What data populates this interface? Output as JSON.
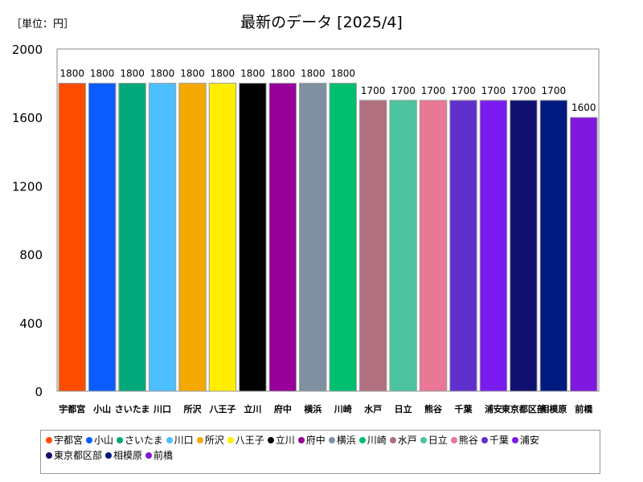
{
  "chart_data": {
    "type": "bar",
    "title": "最新のデータ [2025/4]",
    "unit_label": "［単位：円］",
    "xlabel": "",
    "ylabel": "",
    "ylim": [
      0,
      2000
    ],
    "yticks": [
      "0",
      "400",
      "800",
      "1200",
      "1600",
      "2000"
    ],
    "grid": false,
    "legend_position": "bottom",
    "categories": [
      "宇都宮",
      "小山",
      "さいたま",
      "川口",
      "所沢",
      "八王子",
      "立川",
      "府中",
      "横浜",
      "川崎",
      "水戸",
      "日立",
      "熊谷",
      "千葉",
      "浦安",
      "東京都区部",
      "相模原",
      "前橋"
    ],
    "tick_labels": [
      "宇都宮",
      "小山",
      "さいたま",
      "川口",
      "所沢",
      "八王子",
      "立川",
      "府中",
      "横浜",
      "川崎",
      "水戸",
      "日立",
      "熊谷",
      "千葉",
      "浦安",
      "東京都区部",
      "相模原",
      "前橋"
    ],
    "values": [
      1800,
      1800,
      1800,
      1800,
      1800,
      1800,
      1800,
      1800,
      1800,
      1800,
      1700,
      1700,
      1700,
      1700,
      1700,
      1700,
      1700,
      1600
    ],
    "value_labels": [
      "1800",
      "1800",
      "1800",
      "1800",
      "1800",
      "1800",
      "1800",
      "1800",
      "1800",
      "1800",
      "1700",
      "1700",
      "1700",
      "1700",
      "1700",
      "1700",
      "1700",
      "1600"
    ],
    "colors": [
      "#ff4d00",
      "#0a5cff",
      "#00a87a",
      "#4dbfff",
      "#f5a800",
      "#ffee00",
      "#000000",
      "#960099",
      "#8090a0",
      "#00c070",
      "#b07080",
      "#4cc4a0",
      "#e87896",
      "#6030cc",
      "#7a1cf0",
      "#101070",
      "#001a80",
      "#8018e0"
    ]
  }
}
